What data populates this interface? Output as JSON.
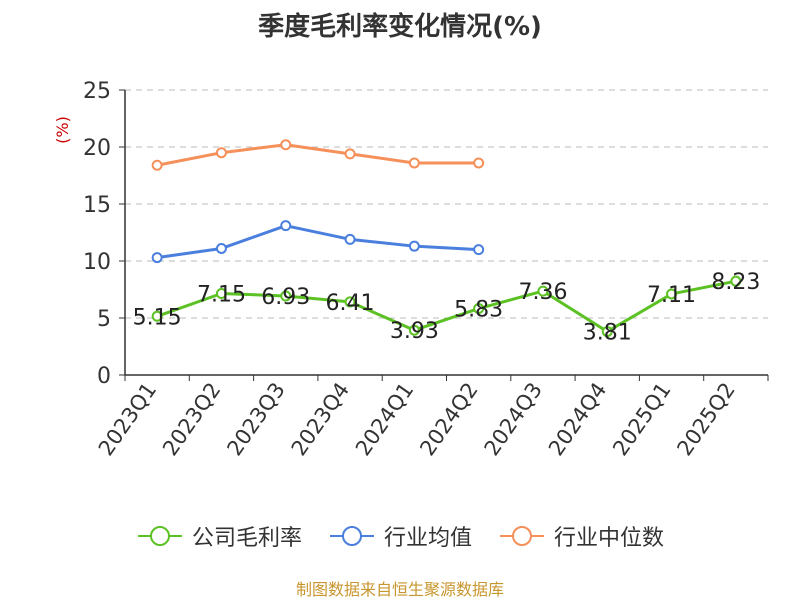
{
  "title": "季度毛利率变化情况(%)",
  "source": "制图数据来自恒生聚源数据库",
  "chart_data": {
    "type": "line",
    "title": "季度毛利率变化情况(%)",
    "ylabel": "(%)",
    "ylim": [
      0,
      25
    ],
    "yticks": [
      0,
      5,
      10,
      15,
      20,
      25
    ],
    "grid": true,
    "legend_position": "bottom",
    "categories": [
      "2023Q1",
      "2023Q2",
      "2023Q3",
      "2023Q4",
      "2024Q1",
      "2024Q2",
      "2024Q3",
      "2024Q4",
      "2025Q1",
      "2025Q2"
    ],
    "series": [
      {
        "name": "公司毛利率",
        "color": "#5cc224",
        "values": [
          5.15,
          7.15,
          6.93,
          6.41,
          3.93,
          5.83,
          7.36,
          3.81,
          7.11,
          8.23
        ],
        "labels": [
          "5.15",
          "7.15",
          "6.93",
          "6.41",
          "3.93",
          "5.83",
          "7.36",
          "3.81",
          "7.11",
          "8.23"
        ]
      },
      {
        "name": "行业均值",
        "color": "#4a7fde",
        "values": [
          10.3,
          11.1,
          13.1,
          11.9,
          11.3,
          11.0,
          null,
          null,
          null,
          null
        ]
      },
      {
        "name": "行业中位数",
        "color": "#f5905a",
        "values": [
          18.4,
          19.5,
          20.2,
          19.4,
          18.6,
          18.6,
          null,
          null,
          null,
          null
        ]
      }
    ]
  }
}
